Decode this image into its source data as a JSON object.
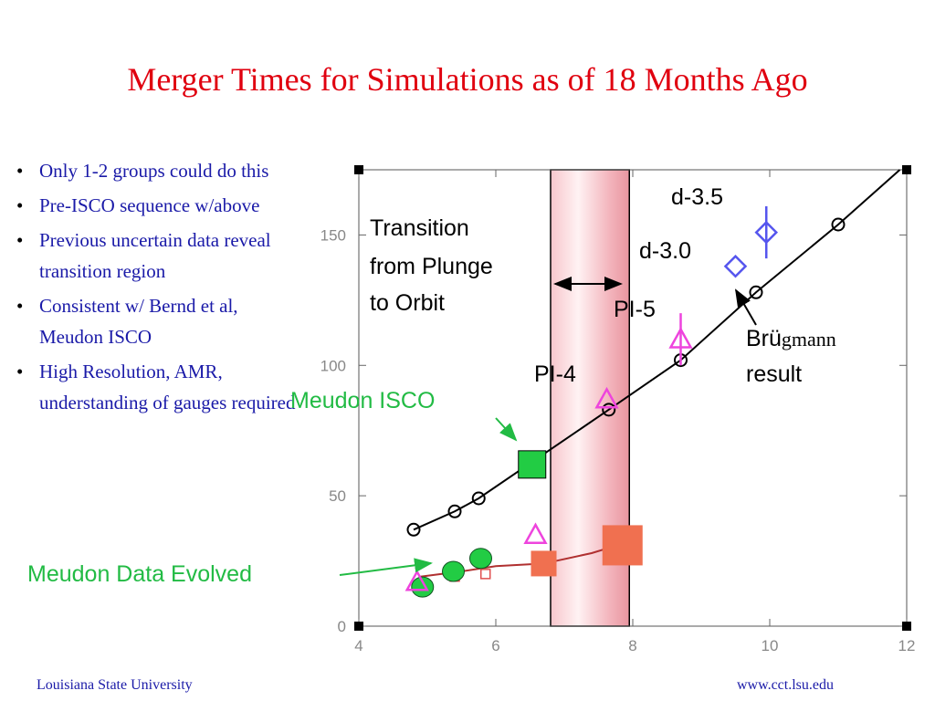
{
  "slide": {
    "title": "Merger Times for Simulations as of 18 Months Ago",
    "bullets": [
      "Only 1-2 groups could do this",
      "Pre-ISCO sequence w/above",
      "Previous uncertain data reveal transition region",
      "Consistent w/ Bernd et al, Meudon ISCO",
      "High Resolution, AMR, understanding of gauges required"
    ],
    "bullet_symbol": "•",
    "footer_left": "Louisiana State University",
    "footer_right": "www.cct.lsu.edu"
  },
  "chart_data": {
    "type": "scatter",
    "xlim": [
      4,
      12
    ],
    "ylim": [
      0,
      175
    ],
    "xticks": [
      "4",
      "6",
      "8",
      "10",
      "12"
    ],
    "yticks": [
      "0",
      "50",
      "100",
      "150"
    ],
    "series": [
      {
        "name": "",
        "marker": "circle",
        "color": "#000000",
        "connected": true,
        "x": [
          4.8,
          5.4,
          5.75,
          7.65,
          8.7,
          9.8,
          11.0
        ],
        "y": [
          37,
          44,
          49,
          83,
          102,
          128,
          154
        ]
      },
      {
        "name": "",
        "marker": "line",
        "color": "#b03030",
        "connected": true,
        "x": [
          4.9,
          5.5,
          6.0,
          6.7,
          7.4,
          7.9
        ],
        "y": [
          19,
          21,
          23,
          24,
          28,
          32
        ]
      },
      {
        "name": "",
        "marker": "small-square",
        "color": "#e05050",
        "connected": false,
        "x": [
          5.4,
          5.85
        ],
        "y": [
          19,
          20
        ]
      },
      {
        "name": "",
        "marker": "filled-circle",
        "color": "#22cc44",
        "connected": false,
        "x": [
          4.93,
          5.38,
          5.78
        ],
        "y": [
          15,
          21,
          26
        ]
      },
      {
        "name": "",
        "marker": "square",
        "color": "#22cc44",
        "connected": false,
        "x": [
          6.53
        ],
        "y": [
          62
        ]
      },
      {
        "name": "",
        "marker": "square",
        "color": "#f07050",
        "connected": false,
        "x": [
          6.7,
          7.85
        ],
        "y": [
          24,
          31
        ]
      },
      {
        "name": "",
        "marker": "triangle",
        "color": "#ee44dd",
        "connected": false,
        "x": [
          4.85,
          6.58,
          7.62,
          8.7
        ],
        "y": [
          17,
          35,
          87,
          110
        ]
      },
      {
        "name": "",
        "marker": "diamond",
        "color": "#5555ee",
        "connected": false,
        "x": [
          9.5,
          9.95
        ],
        "y": [
          138,
          151
        ]
      }
    ],
    "error_bars": [
      {
        "x": 8.7,
        "y": 110,
        "ymin": 100,
        "ymax": 120,
        "color": "#ee44dd"
      },
      {
        "x": 9.95,
        "y": 151,
        "ymin": 141,
        "ymax": 161,
        "color": "#5555ee"
      }
    ],
    "transition_band": {
      "x0": 6.8,
      "x1": 7.95
    },
    "annotations": [
      {
        "lines": [
          "Transition",
          "from Plunge",
          "to Orbit"
        ],
        "color": "#000000"
      },
      {
        "text": "d-3.5",
        "color": "#000000"
      },
      {
        "text": "d-3.0",
        "color": "#000000"
      },
      {
        "text": "PI-5",
        "color": "#000000"
      },
      {
        "text": "PI-4",
        "color": "#000000"
      },
      {
        "text_a": "Brü",
        "text_b": "gmann",
        "text_c": "result",
        "color": "#000000"
      },
      {
        "text": "Meudon ISCO",
        "color": "#22bb44"
      },
      {
        "text": "Meudon Data Evolved",
        "color": "#22bb44"
      }
    ]
  }
}
